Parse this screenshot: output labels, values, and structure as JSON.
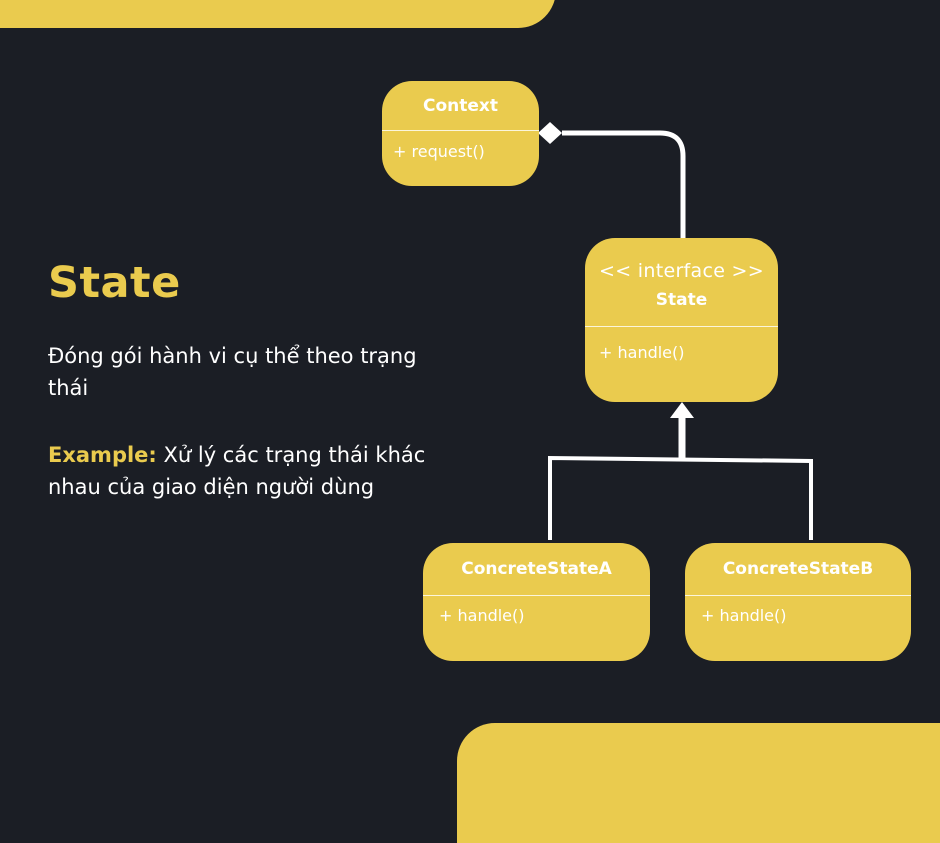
{
  "heading": "State",
  "description": "Đóng gói hành vi cụ thể theo trạng thái",
  "example": {
    "label": "Example:",
    "text": " Xử lý các trạng thái khác nhau của giao diện người dùng"
  },
  "diagram": {
    "context": {
      "name": "Context",
      "method": "+ request()"
    },
    "state": {
      "stereotype": "<< interface >>",
      "name": "State",
      "method": "+ handle()"
    },
    "concrete_a": {
      "name": "ConcreteStateA",
      "method": "+ handle()"
    },
    "concrete_b": {
      "name": "ConcreteStateB",
      "method": "+ handle()"
    }
  },
  "colors": {
    "background": "#1b1e25",
    "accent": "#eacb4e",
    "text": "#ffffff"
  }
}
